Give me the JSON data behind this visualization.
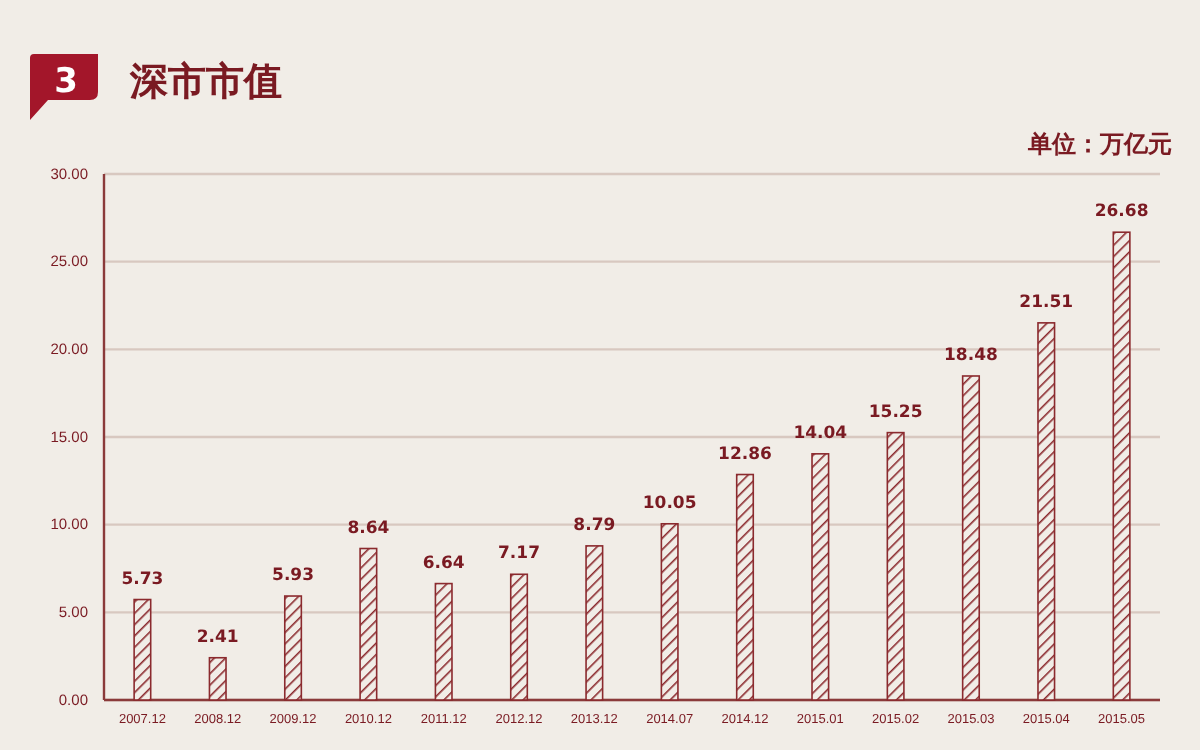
{
  "chart_data": {
    "type": "bar",
    "title": "深市市值",
    "annotations": [
      "3",
      "单位：万亿元"
    ],
    "categories": [
      "2007.12",
      "2008.12",
      "2009.12",
      "2010.12",
      "2011.12",
      "2012.12",
      "2013.12",
      "2014.07",
      "2014.12",
      "2015.01",
      "2015.02",
      "2015.03",
      "2015.04",
      "2015.05"
    ],
    "values": [
      5.73,
      2.41,
      5.93,
      8.64,
      6.64,
      7.17,
      8.79,
      10.05,
      12.86,
      14.04,
      15.25,
      18.48,
      21.51,
      26.68
    ],
    "color": "#8b2a2e",
    "ylim": [
      0,
      30
    ],
    "yticks": [
      {
        "value": 0,
        "label": "0.00"
      },
      {
        "value": 5,
        "label": "5.00"
      },
      {
        "value": 10,
        "label": "10.00"
      },
      {
        "value": 15,
        "label": "15.00"
      },
      {
        "value": 20,
        "label": "20.00"
      },
      {
        "value": 25,
        "label": "25.00"
      },
      {
        "value": 30,
        "label": "30.00"
      }
    ],
    "grid": "y",
    "data_labels": true
  }
}
